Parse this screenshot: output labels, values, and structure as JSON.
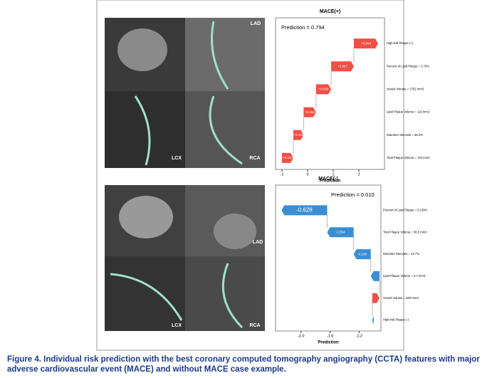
{
  "chart_data": [
    {
      "type": "waterfall",
      "title": "MACE(+)",
      "annotation": "Prediction = 0.794",
      "xlabel": "Prediction",
      "categories": [
        "High-risk Plaque (+)",
        "Percent of Lipid Plaque = 3.75%",
        "Vessel Volume = 2752 mm3",
        "Lipid Plaque Volume = 119 mm3",
        "Diameter Stenosis = 65.3%",
        "Total Plaque Volume = 733 mm3"
      ],
      "values": [
        0.944,
        0.887,
        0.59,
        0.484,
        0.4,
        0.444
      ],
      "value_labels": [
        "+0.944",
        "+0.887",
        "+0.590",
        "+0.484",
        "+0.400",
        "+0.444"
      ],
      "base_value": -1.0,
      "positive_color": "#ef5046",
      "negative_color": "#3a8ed3",
      "xlim": [
        -1.25,
        3.0
      ],
      "xticks": [
        -1,
        0,
        1,
        2
      ]
    },
    {
      "type": "waterfall",
      "title": "MACE(-)",
      "annotation": "Prediction = 0.010",
      "xlabel": "Prediction",
      "categories": [
        "Percent of Lipid Plaque = 0.139%",
        "Total Plaque Volume = 56.5 mm3",
        "Diameter Stenosis = 13.7%",
        "Lipid Plaque Volume = 0.7 mm3",
        "Vessel Volume = 503 mm3",
        "High-risk Plaque (-)"
      ],
      "values": [
        -0.628,
        -0.364,
        -0.236,
        -0.12,
        0.1,
        -0.02
      ],
      "value_labels": [
        "-0.628",
        "-0.364",
        "-0.236",
        null,
        null,
        null
      ],
      "base_value": -1.0,
      "positive_color": "#ef5046",
      "negative_color": "#3a8ed3",
      "xlim": [
        -2.35,
        -0.9
      ],
      "xticks": [
        {
          "value": -2,
          "label": "-2.0"
        },
        -1.6,
        -1.2
      ]
    }
  ],
  "top_panel_labels": [
    "LAD",
    "LCX",
    "RCA"
  ],
  "bottom_panel_labels": [
    "LAD",
    "LCX",
    "RCA"
  ],
  "caption": "Figure 4. Individual risk prediction with the best coronary computed tomography angiography (CCTA) features with major adverse cardiovascular event (MACE) and without MACE case example."
}
